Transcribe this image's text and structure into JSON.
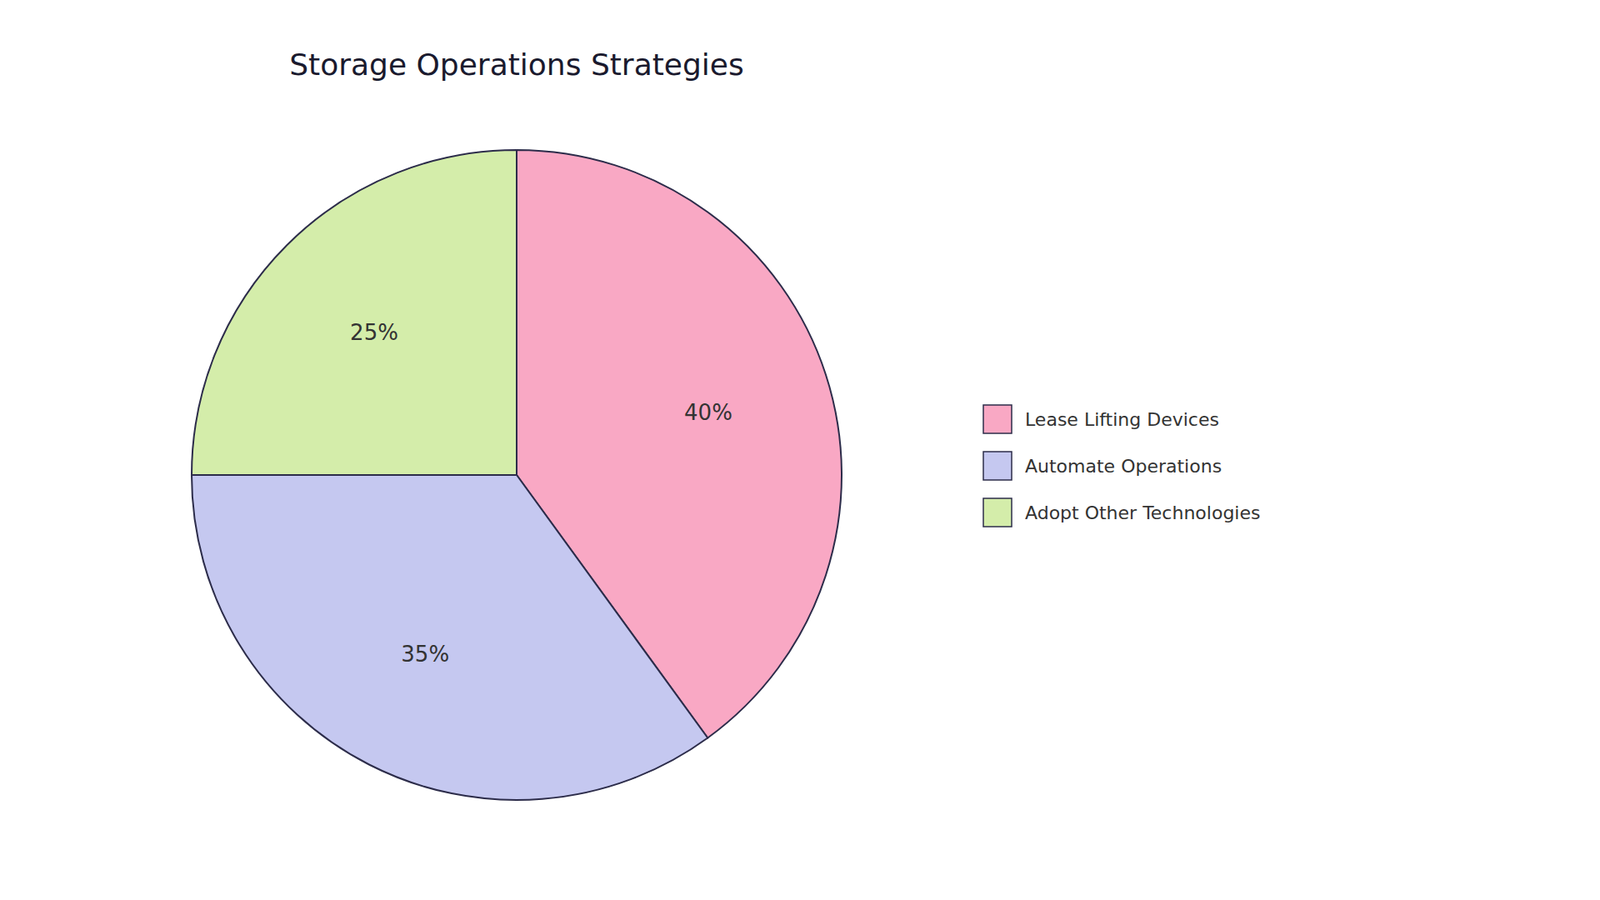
{
  "chart_data": {
    "type": "pie",
    "title": "Storage Operations Strategies",
    "categories": [
      "Lease Lifting Devices",
      "Automate Operations",
      "Adopt Other Technologies"
    ],
    "values": [
      40,
      35,
      25
    ],
    "value_labels": [
      "40%",
      "35%",
      "25%"
    ],
    "colors": [
      "#F9A8C4",
      "#C5C8F0",
      "#D4EDAA"
    ],
    "data_labels": true,
    "legend": "right"
  }
}
